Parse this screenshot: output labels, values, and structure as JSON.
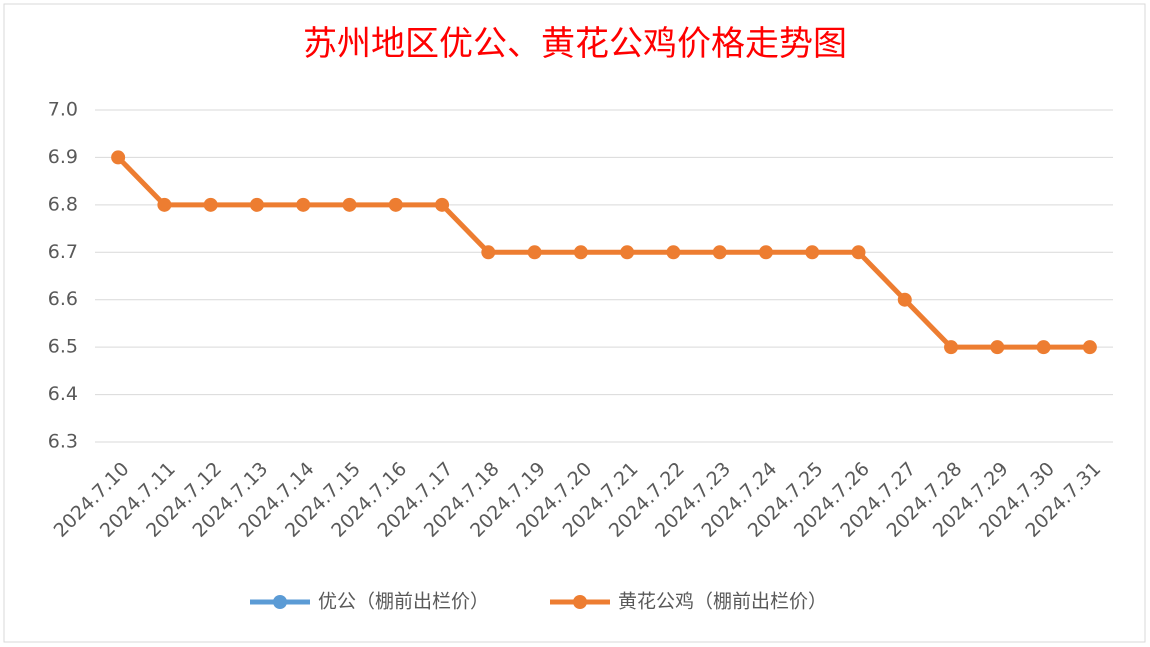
{
  "chart_data": {
    "type": "line",
    "title": "苏州地区优公、黄花公鸡价格走势图",
    "categories": [
      "2024.7.10",
      "2024.7.11",
      "2024.7.12",
      "2024.7.13",
      "2024.7.14",
      "2024.7.15",
      "2024.7.16",
      "2024.7.17",
      "2024.7.18",
      "2024.7.19",
      "2024.7.20",
      "2024.7.21",
      "2024.7.22",
      "2024.7.23",
      "2024.7.24",
      "2024.7.25",
      "2024.7.26",
      "2024.7.27",
      "2024.7.28",
      "2024.7.29",
      "2024.7.30",
      "2024.7.31"
    ],
    "series": [
      {
        "name": "优公（棚前出栏价）",
        "color": "#5b9bd5",
        "values": [
          null,
          null,
          null,
          null,
          null,
          null,
          null,
          null,
          null,
          null,
          null,
          null,
          null,
          null,
          null,
          null,
          null,
          null,
          null,
          null,
          null,
          null
        ]
      },
      {
        "name": "黄花公鸡（棚前出栏价）",
        "color": "#ed7d31",
        "values": [
          6.9,
          6.8,
          6.8,
          6.8,
          6.8,
          6.8,
          6.8,
          6.8,
          6.7,
          6.7,
          6.7,
          6.7,
          6.7,
          6.7,
          6.7,
          6.7,
          6.7,
          6.6,
          6.5,
          6.5,
          6.5,
          6.5
        ]
      }
    ],
    "ylim": [
      6.3,
      7.0
    ],
    "yticks": [
      6.3,
      6.4,
      6.5,
      6.6,
      6.7,
      6.8,
      6.9,
      {
        "value": 7,
        "label": "7.0"
      }
    ],
    "grid": true
  }
}
